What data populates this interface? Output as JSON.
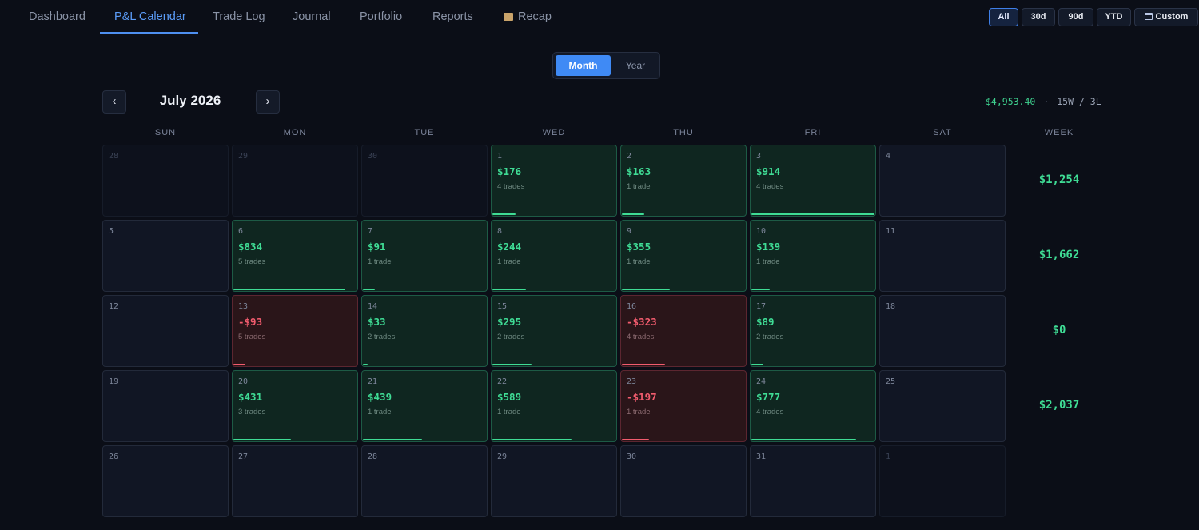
{
  "nav": {
    "tabs": [
      "Dashboard",
      "P&L Calendar",
      "Trade Log",
      "Journal",
      "Portfolio",
      "Reports",
      "Recap"
    ],
    "active_index": 1,
    "recap_icon": "clapperboard-icon"
  },
  "range": {
    "buttons": [
      "All",
      "30d",
      "90d",
      "YTD",
      "Custom"
    ],
    "active": "All",
    "custom_icon": "calendar-icon"
  },
  "view_toggle": {
    "month": "Month",
    "year": "Year",
    "active": "Month"
  },
  "calendar": {
    "prev": "‹",
    "next": "›",
    "month_label": "July 2026",
    "total_pnl": "$4,953.40",
    "separator": "·",
    "win_loss": "15W / 3L",
    "dow": [
      "SUN",
      "MON",
      "TUE",
      "WED",
      "THU",
      "FRI",
      "SAT"
    ],
    "week_header": "WEEK",
    "weeks": [
      {
        "total": "$1,254",
        "days": [
          {
            "d": "28",
            "muted": true
          },
          {
            "d": "29",
            "muted": true
          },
          {
            "d": "30",
            "muted": true
          },
          {
            "d": "1",
            "pnl": "$176",
            "trades": "4 trades",
            "type": "win",
            "level": 0.19
          },
          {
            "d": "2",
            "pnl": "$163",
            "trades": "1 trade",
            "type": "win",
            "level": 0.18
          },
          {
            "d": "3",
            "pnl": "$914",
            "trades": "4 trades",
            "type": "win",
            "level": 1.0
          },
          {
            "d": "4"
          }
        ]
      },
      {
        "total": "$1,662",
        "days": [
          {
            "d": "5"
          },
          {
            "d": "6",
            "pnl": "$834",
            "trades": "5 trades",
            "type": "win",
            "level": 0.91
          },
          {
            "d": "7",
            "pnl": "$91",
            "trades": "1 trade",
            "type": "win",
            "level": 0.1
          },
          {
            "d": "8",
            "pnl": "$244",
            "trades": "1 trade",
            "type": "win",
            "level": 0.27
          },
          {
            "d": "9",
            "pnl": "$355",
            "trades": "1 trade",
            "type": "win",
            "level": 0.39
          },
          {
            "d": "10",
            "pnl": "$139",
            "trades": "1 trade",
            "type": "win",
            "level": 0.15
          },
          {
            "d": "11"
          }
        ]
      },
      {
        "total": "$0",
        "days": [
          {
            "d": "12"
          },
          {
            "d": "13",
            "pnl": "-$93",
            "trades": "5 trades",
            "type": "loss",
            "level": 0.1
          },
          {
            "d": "14",
            "pnl": "$33",
            "trades": "2 trades",
            "type": "win",
            "level": 0.04
          },
          {
            "d": "15",
            "pnl": "$295",
            "trades": "2 trades",
            "type": "win",
            "level": 0.32
          },
          {
            "d": "16",
            "pnl": "-$323",
            "trades": "4 trades",
            "type": "loss",
            "level": 0.35
          },
          {
            "d": "17",
            "pnl": "$89",
            "trades": "2 trades",
            "type": "win",
            "level": 0.1
          },
          {
            "d": "18"
          }
        ]
      },
      {
        "total": "$2,037",
        "days": [
          {
            "d": "19"
          },
          {
            "d": "20",
            "pnl": "$431",
            "trades": "3 trades",
            "type": "win",
            "level": 0.47
          },
          {
            "d": "21",
            "pnl": "$439",
            "trades": "1 trade",
            "type": "win",
            "level": 0.48
          },
          {
            "d": "22",
            "pnl": "$589",
            "trades": "1 trade",
            "type": "win",
            "level": 0.64
          },
          {
            "d": "23",
            "pnl": "-$197",
            "trades": "1 trade",
            "type": "loss",
            "level": 0.22
          },
          {
            "d": "24",
            "pnl": "$777",
            "trades": "4 trades",
            "type": "win",
            "level": 0.85
          },
          {
            "d": "25"
          }
        ]
      },
      {
        "total": "",
        "days": [
          {
            "d": "26"
          },
          {
            "d": "27"
          },
          {
            "d": "28"
          },
          {
            "d": "29"
          },
          {
            "d": "30"
          },
          {
            "d": "31"
          },
          {
            "d": "1",
            "muted": true
          }
        ]
      }
    ]
  }
}
